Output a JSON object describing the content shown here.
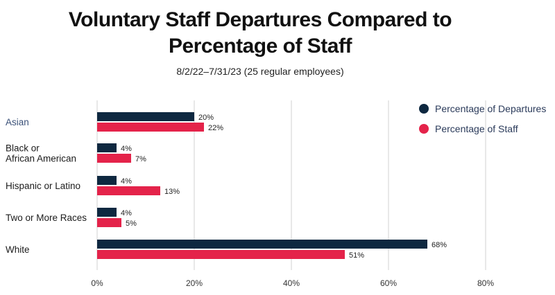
{
  "title_line1": "Voluntary Staff Departures Compared to",
  "title_line2": "Percentage of Staff",
  "subtitle": "8/2/22–7/31/23 (25 regular employees)",
  "colors": {
    "departures": "#0e2840",
    "staff": "#e4234a",
    "grid": "#d0d0d0",
    "accent_label": "#3a5078"
  },
  "chart_data": {
    "type": "bar",
    "orientation": "horizontal",
    "categories": [
      "Asian",
      "Black or African American",
      "Hispanic or Latino",
      "Two or More Races",
      "White"
    ],
    "category_lines": [
      [
        "Asian"
      ],
      [
        "Black or",
        "African American"
      ],
      [
        "Hispanic or Latino"
      ],
      [
        "Two or More Races"
      ],
      [
        "White"
      ]
    ],
    "series": [
      {
        "name": "Percentage of Departures",
        "values": [
          20,
          4,
          4,
          4,
          68
        ],
        "labels": [
          "20%",
          "4%",
          "4%",
          "4%",
          "68%"
        ]
      },
      {
        "name": "Percentage of Staff",
        "values": [
          22,
          7,
          13,
          5,
          51
        ],
        "labels": [
          "22%",
          "7%",
          "13%",
          "5%",
          "51%"
        ]
      }
    ],
    "xlim": [
      0,
      80
    ],
    "xticks": [
      0,
      20,
      40,
      60,
      80
    ],
    "xtick_labels": [
      "0%",
      "20%",
      "40%",
      "60%",
      "80%"
    ],
    "grid": true,
    "legend_position": "top-right"
  }
}
